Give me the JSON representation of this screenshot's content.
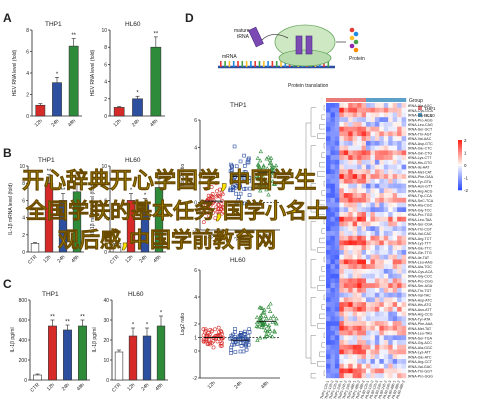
{
  "panel_letters": [
    "A",
    "B",
    "C",
    "D"
  ],
  "watermark_lines": [
    "开心辞典开心学国学,中国学生",
    "全国学联的基本任务,国学小名士",
    "观后感,中国学前教育网"
  ],
  "chart_data": [
    {
      "id": "A1",
      "type": "bar",
      "title": "THP1",
      "ylabel": "HEV RNA level (fold)",
      "categories": [
        "12h",
        "24h",
        "48h"
      ],
      "values": [
        1.0,
        3.1,
        6.5
      ],
      "errors": [
        0.15,
        0.5,
        0.7
      ],
      "ylim": [
        0,
        8
      ],
      "yticks": [
        0,
        2,
        4,
        6,
        8
      ],
      "stars": [
        "",
        "*",
        "**"
      ],
      "colors": [
        "#d62a28",
        "#2d4fa0",
        "#2e8b3a"
      ]
    },
    {
      "id": "A2",
      "type": "bar",
      "title": "HL60",
      "ylabel": "HEV RNA level (fold)",
      "categories": [
        "12h",
        "24h",
        "48h"
      ],
      "values": [
        1.0,
        2.0,
        8.0
      ],
      "errors": [
        0.1,
        0.3,
        1.2
      ],
      "ylim": [
        0,
        10
      ],
      "yticks": [
        0,
        2,
        4,
        6,
        8,
        10
      ],
      "stars": [
        "",
        "*",
        "**"
      ],
      "colors": [
        "#d62a28",
        "#2d4fa0",
        "#2e8b3a"
      ]
    },
    {
      "id": "B1",
      "type": "bar",
      "title": "THP1",
      "ylabel": "IL-1β mRNA level (fold)",
      "categories": [
        "CTR",
        "12h",
        "24h",
        "48h"
      ],
      "values": [
        1.0,
        8.0,
        6.0,
        7.0
      ],
      "errors": [
        0.1,
        1.0,
        0.8,
        0.9
      ],
      "ylim": [
        0,
        10
      ],
      "yticks": [
        0,
        2,
        4,
        6,
        8,
        10
      ],
      "stars": [
        "",
        "**",
        "**",
        "**"
      ],
      "colors": [
        "#ffffff",
        "#d62a28",
        "#2d4fa0",
        "#2e8b3a"
      ]
    },
    {
      "id": "B2",
      "type": "bar",
      "title": "HL60",
      "ylabel": "IL-1β mRNA level (fold)",
      "categories": [
        "CTR",
        "12h",
        "24h",
        "48h"
      ],
      "values": [
        1.0,
        6.0,
        5.5,
        7.5
      ],
      "errors": [
        0.1,
        0.8,
        0.7,
        1.0
      ],
      "ylim": [
        0,
        10
      ],
      "yticks": [
        0,
        2,
        4,
        6,
        8,
        10
      ],
      "stars": [
        "",
        "*",
        "*",
        "**"
      ],
      "colors": [
        "#ffffff",
        "#d62a28",
        "#2d4fa0",
        "#2e8b3a"
      ]
    },
    {
      "id": "C1",
      "type": "bar",
      "title": "THP1",
      "ylabel": "IL-1β pg/ml",
      "categories": [
        "CTR",
        "12h",
        "24h",
        "48h"
      ],
      "values": [
        50,
        540,
        500,
        540
      ],
      "errors": [
        10,
        60,
        50,
        60
      ],
      "ylim": [
        0,
        800
      ],
      "yticks": [
        0,
        200,
        400,
        600,
        800
      ],
      "stars": [
        "",
        "**",
        "**",
        "**"
      ],
      "colors": [
        "#ffffff",
        "#d62a28",
        "#2d4fa0",
        "#2e8b3a"
      ]
    },
    {
      "id": "C2",
      "type": "bar",
      "title": "HL60",
      "ylabel": "IL-1β pg/ml",
      "categories": [
        "CTR",
        "12h",
        "24h",
        "48h"
      ],
      "values": [
        14,
        22,
        22,
        27
      ],
      "errors": [
        1,
        4,
        4,
        5
      ],
      "ylim": [
        0,
        40
      ],
      "yticks": [
        0,
        10,
        20,
        30,
        40
      ],
      "stars": [
        "",
        "*",
        "*",
        "*"
      ],
      "colors": [
        "#ffffff",
        "#d62a28",
        "#2d4fa0",
        "#2e8b3a"
      ]
    },
    {
      "id": "D1",
      "type": "scatter",
      "title": "THP1",
      "ylabel": "Log2 ratio",
      "categories": [
        "12h",
        "24h",
        "48h"
      ],
      "centers": [
        0.1,
        1.9,
        2.2
      ],
      "spreads": [
        0.9,
        1.3,
        1.0
      ],
      "ylim": [
        -2,
        6
      ],
      "yticks": [
        -2,
        0,
        2,
        4,
        6
      ],
      "colors": [
        "#d62a28",
        "#2d4fa0",
        "#2e8b3a"
      ]
    },
    {
      "id": "D2",
      "type": "scatter",
      "title": "HL60",
      "ylabel": "Log2 ratio",
      "categories": [
        "12h",
        "24h",
        "48h"
      ],
      "centers": [
        1.0,
        0.8,
        2.2
      ],
      "spreads": [
        0.5,
        0.6,
        0.8
      ],
      "ylim": [
        -2,
        6
      ],
      "yticks": [
        -2,
        0,
        1,
        2,
        4,
        6
      ],
      "colors": [
        "#d62a28",
        "#2d4fa0",
        "#2e8b3a"
      ]
    },
    {
      "id": "D3",
      "type": "heatmap",
      "group_label": "Group",
      "legend": [
        {
          "name": "THP1",
          "color": "#e97a7a"
        },
        {
          "name": "HL60",
          "color": "#5aa0c8"
        }
      ],
      "colorbar_ticks": [
        2,
        1,
        0,
        -1,
        -2
      ],
      "columns": [
        "THP1-12h-1",
        "THP1-12h-2",
        "THP1-12h-3",
        "THP1-24h-1",
        "THP1-24h-2",
        "THP1-24h-3",
        "THP1-48h-1",
        "THP1-48h-2",
        "THP1-48h-3",
        "HL60-12h-1",
        "HL60-12h-2",
        "HL60-12h-3",
        "HL60-24h-1",
        "HL60-24h-2",
        "HL60-24h-3",
        "HL60-48h-1",
        "HL60-48h-2",
        "HL60-48h-3"
      ],
      "rows": [
        "tRNA-Ala-AGC",
        "tRNA-Cys-GCA",
        "tRNA-Gly-GCC",
        "tRNA-Pro-AGG",
        "tRNA-Leu-CAG",
        "tRNA-Ser-GCT",
        "tRNA-Thr-AGT",
        "tRNA-Val-AAC",
        "tRNA-Asp-GTC",
        "tRNA-Glu-CTC",
        "tRNA-Gln-CTG",
        "tRNA-Lys-CTT",
        "tRNA-His-GTG",
        "tRNA-Ile-AAT",
        "tRNA-Met-CAT",
        "tRNA-Phe-GAA",
        "tRNA-Tyr-GTA",
        "tRNA-Asn-GTT",
        "tRNA-Arg-ACG",
        "tRNA-Trp-CCA",
        "tRNA-SeC-TCA",
        "tRNA-Ala-CGC",
        "tRNA-Gly-TCC",
        "tRNA-Pro-TGG",
        "tRNA-Leu-TAA",
        "tRNA-Ser-CGA",
        "tRNA-Thr-CGT",
        "tRNA-Val-CAC",
        "tRNA-Arg-TCT",
        "tRNA-Lys-TTT",
        "tRNA-Glu-TTC",
        "tRNA-Gln-TTG",
        "tRNA-Ile-TAT",
        "tRNA-Leu-AAG",
        "tRNA-Ala-TGC",
        "tRNA-Cys-ACA",
        "tRNA-Gly-CCC",
        "tRNA-Pro-CGG",
        "tRNA-Ser-AGA",
        "tRNA-Thr-TGT",
        "tRNA-Val-TAC",
        "tRNA-Asp-ATC",
        "tRNA-His-ATG",
        "tRNA-Asn-ATT",
        "tRNA-Arg-CCG",
        "tRNA-Tyr-ATA",
        "tRNA-Phe-AAA",
        "tRNA-Met-TAT",
        "tRNA-Leu-TAG",
        "tRNA-Ser-TGA",
        "tRNA-Gly-ACC",
        "tRNA-Ala-GGC",
        "tRNA-Lys-ATT",
        "tRNA-Glu-ATC",
        "tRNA-Arg-CCT",
        "tRNA-Val-GAC",
        "tRNA-Thr-GGT",
        "tRNA-Pro-GGG"
      ]
    }
  ],
  "diagram": {
    "labels": [
      "mature tRNA",
      "mRNA",
      "Protein",
      "Protein translation"
    ]
  }
}
